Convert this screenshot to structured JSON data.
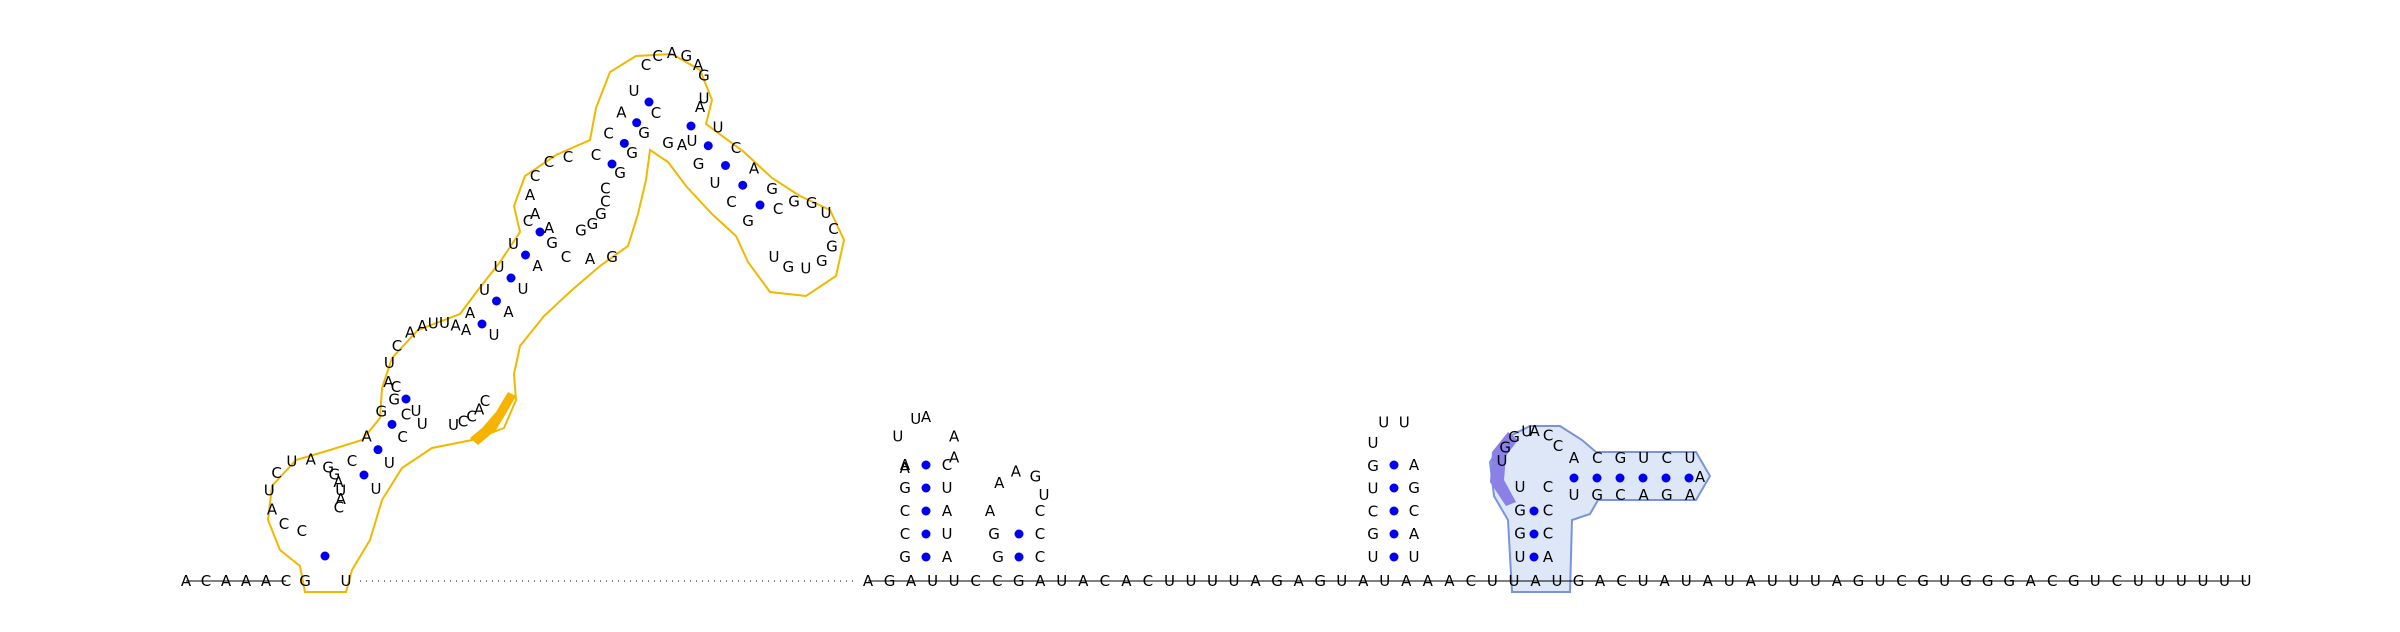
{
  "diagram": {
    "line1_left": [
      "A",
      "C",
      "A",
      "A",
      "A",
      "C"
    ],
    "line1_mid": [
      "A",
      "G",
      "A",
      "U",
      "U",
      "C",
      "C",
      "G",
      "A",
      "U",
      "A",
      "C",
      "A",
      "C",
      "U",
      "U",
      "U",
      "U",
      "A",
      "G",
      "A",
      "G",
      "U",
      "A",
      "U",
      "A",
      "A",
      "A",
      "C",
      "U",
      "U",
      "A",
      "U",
      "G",
      "A",
      "C",
      "U",
      "A",
      "U",
      "A",
      "U",
      "A",
      "U",
      "U",
      "U",
      "A",
      "G",
      "U",
      "C",
      "G",
      "U",
      "G",
      "G",
      "G",
      "A",
      "C",
      "G",
      "U",
      "C",
      "U",
      "U",
      "U",
      "U",
      "U",
      "U"
    ],
    "hp_small1": [
      "G",
      "C",
      "C",
      "G",
      "A",
      "C",
      "U",
      "A",
      "U",
      "A",
      "A",
      "G",
      "G",
      "A",
      "C",
      "U"
    ],
    "hp_small2": [
      "G",
      "G",
      "A",
      "A",
      "A",
      "G",
      "U",
      "C",
      "C",
      "C"
    ],
    "hp_small3": [
      "U",
      "C",
      "U",
      "G",
      "U",
      "U",
      "U",
      "A",
      "G",
      "C",
      "A",
      "U"
    ],
    "big_left_stem": [
      "C",
      "G",
      "A",
      "U",
      "C",
      "A",
      "G",
      "U",
      "U",
      "A",
      "C",
      "C",
      "C",
      "A",
      "U",
      "G",
      "A",
      "C",
      "A",
      "G",
      "A",
      "G",
      "U",
      "C",
      "A",
      "G",
      "C",
      "G",
      "U"
    ],
    "big_right_stem": [
      "G",
      "U",
      "C",
      "G",
      "U",
      "G",
      "U",
      "G",
      "G",
      "C",
      "U",
      "C",
      "A",
      "G",
      "A",
      "G",
      "G",
      "U",
      "C",
      "C",
      "A",
      "G",
      "G",
      "C",
      "G",
      "U",
      "A",
      "G",
      "U",
      "A",
      "U",
      "C",
      "C",
      "A",
      "C",
      "U",
      "C",
      "U",
      "U",
      "A",
      "C",
      "G",
      "A"
    ],
    "pseudoknot": [
      "U",
      "G",
      "G",
      "U",
      "A",
      "C",
      "C",
      "A",
      "C",
      "G",
      "U",
      "C",
      "U",
      "A",
      "A",
      "G",
      "A",
      "C",
      "G",
      "U",
      "U",
      "G",
      "G",
      "C",
      "C",
      "C",
      "A",
      "U"
    ]
  }
}
